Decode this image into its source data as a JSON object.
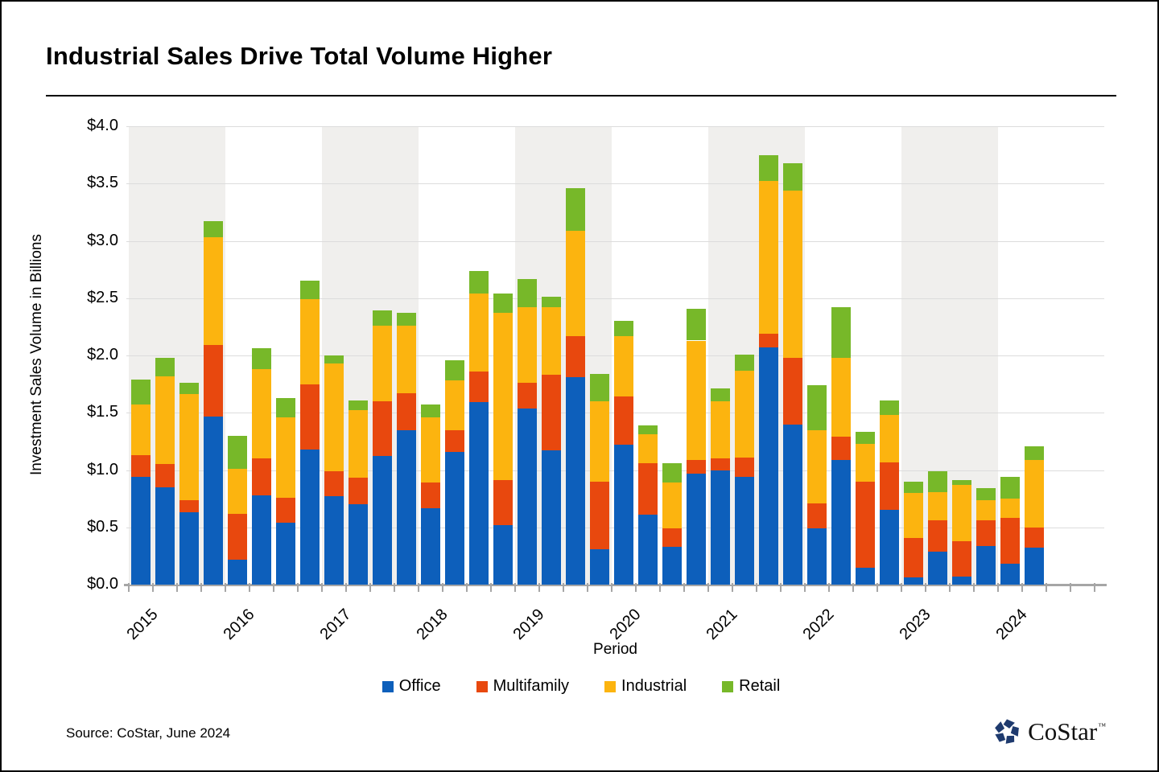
{
  "header": {
    "title": "Industrial Sales Drive Total Volume Higher"
  },
  "chart_data": {
    "type": "bar",
    "stacked": true,
    "title": "Industrial Sales Drive Total Volume Higher",
    "xlabel": "Period",
    "ylabel": "Investment Sales Volume in Billions",
    "ylim": [
      0,
      4.0
    ],
    "ytick_step": 0.5,
    "ytick_labels": [
      "$0.0",
      "$0.5",
      "$1.0",
      "$1.5",
      "$2.0",
      "$2.5",
      "$3.0",
      "$3.5",
      "$4.0"
    ],
    "grid": true,
    "legend_position": "bottom",
    "years": [
      "2015",
      "2016",
      "2017",
      "2018",
      "2019",
      "2020",
      "2021",
      "2022",
      "2023",
      "2024"
    ],
    "quarters_per_year": 4,
    "categories": [
      "2015 Q1",
      "2015 Q2",
      "2015 Q3",
      "2015 Q4",
      "2016 Q1",
      "2016 Q2",
      "2016 Q3",
      "2016 Q4",
      "2017 Q1",
      "2017 Q2",
      "2017 Q3",
      "2017 Q4",
      "2018 Q1",
      "2018 Q2",
      "2018 Q3",
      "2018 Q4",
      "2019 Q1",
      "2019 Q2",
      "2019 Q3",
      "2019 Q4",
      "2020 Q1",
      "2020 Q2",
      "2020 Q3",
      "2020 Q4",
      "2021 Q1",
      "2021 Q2",
      "2021 Q3",
      "2021 Q4",
      "2022 Q1",
      "2022 Q2",
      "2022 Q3",
      "2022 Q4",
      "2023 Q1",
      "2023 Q2",
      "2023 Q3",
      "2023 Q4",
      "2024 Q1",
      "2024 Q2"
    ],
    "series": [
      {
        "name": "Office",
        "color": "#0d5fbb",
        "values": [
          0.94,
          0.85,
          0.63,
          1.47,
          0.22,
          0.78,
          0.54,
          1.18,
          0.77,
          0.7,
          1.12,
          1.35,
          0.67,
          1.16,
          1.59,
          0.52,
          1.54,
          1.17,
          1.81,
          0.31,
          1.22,
          0.61,
          0.33,
          0.97,
          1.0,
          0.94,
          2.07,
          1.4,
          0.49,
          1.09,
          0.15,
          0.65,
          0.06,
          0.29,
          0.07,
          0.34,
          0.18,
          0.32
        ]
      },
      {
        "name": "Multifamily",
        "color": "#e8480e",
        "values": [
          0.19,
          0.2,
          0.11,
          0.62,
          0.4,
          0.32,
          0.22,
          0.57,
          0.22,
          0.23,
          0.48,
          0.32,
          0.22,
          0.19,
          0.27,
          0.39,
          0.22,
          0.66,
          0.36,
          0.59,
          0.42,
          0.45,
          0.16,
          0.12,
          0.1,
          0.17,
          0.12,
          0.58,
          0.22,
          0.2,
          0.75,
          0.42,
          0.35,
          0.27,
          0.31,
          0.22,
          0.4,
          0.18
        ]
      },
      {
        "name": "Industrial",
        "color": "#fcb40f",
        "values": [
          0.44,
          0.77,
          0.92,
          0.94,
          0.39,
          0.78,
          0.7,
          0.74,
          0.94,
          0.59,
          0.66,
          0.59,
          0.57,
          0.43,
          0.68,
          1.46,
          0.66,
          0.59,
          0.92,
          0.7,
          0.53,
          0.25,
          0.4,
          1.04,
          0.5,
          0.76,
          1.33,
          1.46,
          0.64,
          0.69,
          0.33,
          0.41,
          0.39,
          0.25,
          0.49,
          0.18,
          0.17,
          0.59
        ]
      },
      {
        "name": "Retail",
        "color": "#77b829",
        "values": [
          0.22,
          0.16,
          0.1,
          0.14,
          0.29,
          0.18,
          0.17,
          0.16,
          0.07,
          0.09,
          0.13,
          0.11,
          0.11,
          0.18,
          0.2,
          0.17,
          0.25,
          0.09,
          0.37,
          0.24,
          0.13,
          0.08,
          0.17,
          0.28,
          0.11,
          0.14,
          0.23,
          0.24,
          0.39,
          0.44,
          0.1,
          0.13,
          0.1,
          0.18,
          0.04,
          0.1,
          0.19,
          0.12
        ]
      }
    ],
    "band_color": "#f0efed",
    "gridline_color": "#dcdcdc",
    "axis_color": "#a6a6a6"
  },
  "footer": {
    "source": "Source: CoStar, June 2024",
    "logo_text": "CoStar",
    "logo_tm": "™"
  }
}
